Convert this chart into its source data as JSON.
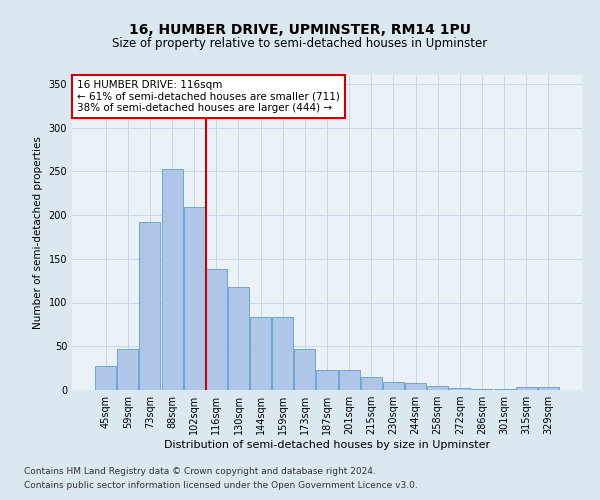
{
  "title": "16, HUMBER DRIVE, UPMINSTER, RM14 1PU",
  "subtitle": "Size of property relative to semi-detached houses in Upminster",
  "xlabel": "Distribution of semi-detached houses by size in Upminster",
  "ylabel": "Number of semi-detached properties",
  "categories": [
    "45sqm",
    "59sqm",
    "73sqm",
    "88sqm",
    "102sqm",
    "116sqm",
    "130sqm",
    "144sqm",
    "159sqm",
    "173sqm",
    "187sqm",
    "201sqm",
    "215sqm",
    "230sqm",
    "244sqm",
    "258sqm",
    "272sqm",
    "286sqm",
    "301sqm",
    "315sqm",
    "329sqm"
  ],
  "values": [
    28,
    47,
    192,
    253,
    209,
    138,
    118,
    84,
    84,
    47,
    23,
    23,
    15,
    9,
    8,
    5,
    2,
    1,
    1,
    3,
    4
  ],
  "bar_color": "#aec6e8",
  "bar_edge_color": "#5a9fd4",
  "highlight_line_index": 5,
  "highlight_line_color": "#cc0000",
  "annotation_line1": "16 HUMBER DRIVE: 116sqm",
  "annotation_line2": "← 61% of semi-detached houses are smaller (711)",
  "annotation_line3": "38% of semi-detached houses are larger (444) →",
  "annotation_box_color": "#ffffff",
  "annotation_border_color": "#cc0000",
  "ylim": [
    0,
    360
  ],
  "yticks": [
    0,
    50,
    100,
    150,
    200,
    250,
    300,
    350
  ],
  "grid_color": "#c8d8e8",
  "background_color": "#dce8f0",
  "plot_bg_color": "#eaf2f8",
  "footer_line1": "Contains HM Land Registry data © Crown copyright and database right 2024.",
  "footer_line2": "Contains public sector information licensed under the Open Government Licence v3.0.",
  "title_fontsize": 10,
  "subtitle_fontsize": 8.5,
  "xlabel_fontsize": 8,
  "ylabel_fontsize": 7.5,
  "tick_fontsize": 7,
  "annotation_fontsize": 7.5,
  "footer_fontsize": 6.5
}
